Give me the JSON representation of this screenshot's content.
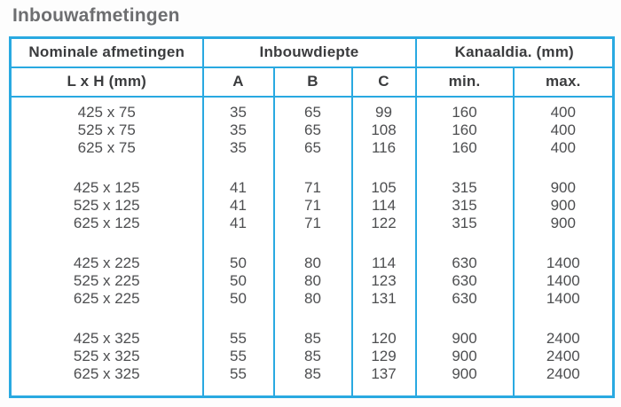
{
  "page": {
    "title": "Inbouwafmetingen"
  },
  "colors": {
    "border": "#29A9E1",
    "title_text": "#6D6E70",
    "header_text": "#3B3C3E",
    "data_text": "#4D4E50"
  },
  "table": {
    "sections": [
      {
        "label": "Nominale afmetingen",
        "span": 1
      },
      {
        "label": "Inbouwdiepte",
        "span": 3
      },
      {
        "label": "Kanaaldia. (mm)",
        "span": 2
      }
    ],
    "columns": [
      {
        "label": "L x H (mm)"
      },
      {
        "label": "A"
      },
      {
        "label": "B"
      },
      {
        "label": "C"
      },
      {
        "label": "min."
      },
      {
        "label": "max."
      }
    ],
    "groups": [
      {
        "rows": [
          [
            "425 x 75",
            "35",
            "65",
            "99",
            "160",
            "400"
          ],
          [
            "525 x 75",
            "35",
            "65",
            "108",
            "160",
            "400"
          ],
          [
            "625 x 75",
            "35",
            "65",
            "116",
            "160",
            "400"
          ]
        ]
      },
      {
        "rows": [
          [
            "425 x 125",
            "41",
            "71",
            "105",
            "315",
            "900"
          ],
          [
            "525 x 125",
            "41",
            "71",
            "114",
            "315",
            "900"
          ],
          [
            "625 x 125",
            "41",
            "71",
            "122",
            "315",
            "900"
          ]
        ]
      },
      {
        "rows": [
          [
            "425 x 225",
            "50",
            "80",
            "114",
            "630",
            "1400"
          ],
          [
            "525 x 225",
            "50",
            "80",
            "123",
            "630",
            "1400"
          ],
          [
            "625 x 225",
            "50",
            "80",
            "131",
            "630",
            "1400"
          ]
        ]
      },
      {
        "rows": [
          [
            "425 x 325",
            "55",
            "85",
            "120",
            "900",
            "2400"
          ],
          [
            "525 x 325",
            "55",
            "85",
            "129",
            "900",
            "2400"
          ],
          [
            "625 x 325",
            "55",
            "85",
            "137",
            "900",
            "2400"
          ]
        ]
      }
    ]
  }
}
